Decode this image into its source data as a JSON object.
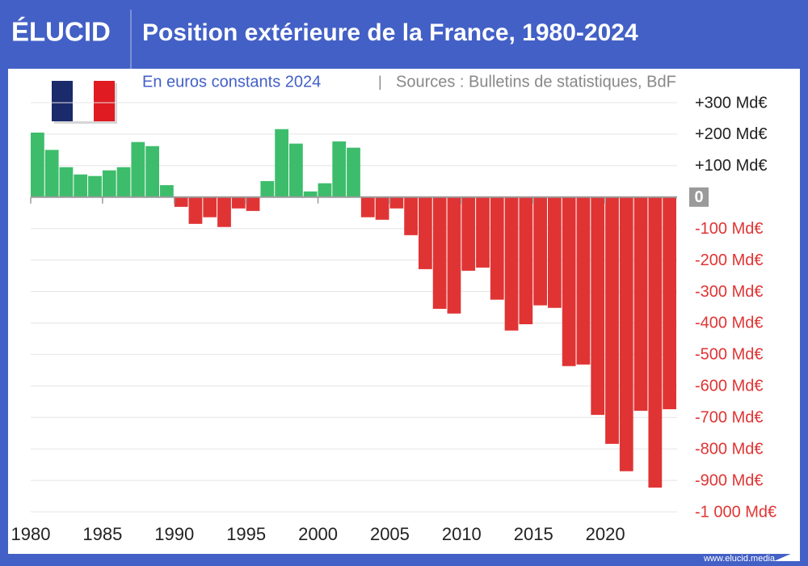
{
  "header": {
    "brand": "ÉLUCID"
  },
  "footer": {
    "url": "www.elucid.media"
  },
  "chart_data": {
    "type": "bar",
    "title": "Position extérieure de la France, 1980-2024",
    "subtitle": "En euros constants 2024",
    "separator": "|",
    "source": "Sources : Bulletins de statistiques, BdF",
    "x": [
      1980,
      1981,
      1982,
      1983,
      1984,
      1985,
      1986,
      1987,
      1988,
      1989,
      1990,
      1991,
      1992,
      1993,
      1994,
      1995,
      1996,
      1997,
      1998,
      1999,
      2000,
      2001,
      2002,
      2003,
      2004,
      2005,
      2006,
      2007,
      2008,
      2009,
      2010,
      2011,
      2012,
      2013,
      2014,
      2015,
      2016,
      2017,
      2018,
      2019,
      2020,
      2021,
      2022,
      2023,
      2024
    ],
    "values": [
      205,
      150,
      95,
      72,
      67,
      85,
      95,
      175,
      162,
      38,
      -31,
      -85,
      -64,
      -95,
      -36,
      -44,
      51,
      216,
      170,
      18,
      44,
      177,
      157,
      -64,
      -72,
      -36,
      -121,
      -229,
      -355,
      -370,
      -234,
      -224,
      -326,
      -424,
      -404,
      -344,
      -352,
      -537,
      -532,
      -692,
      -784,
      -871,
      -679,
      -923,
      -674
    ],
    "positive_color": "#3dbd6b",
    "negative_color": "#e03434",
    "xlim": [
      1980,
      2025
    ],
    "xticks": [
      1980,
      1985,
      1990,
      1995,
      2000,
      2005,
      2010,
      2015,
      2020
    ],
    "ylim": [
      -1000,
      300
    ],
    "yticks": [
      {
        "value": 300,
        "label": "+300 Md€"
      },
      {
        "value": 200,
        "label": "+200 Md€"
      },
      {
        "value": 100,
        "label": "+100 Md€"
      },
      0,
      {
        "value": -100,
        "label": "-100 Md€"
      },
      {
        "value": -200,
        "label": "-200 Md€"
      },
      {
        "value": -300,
        "label": "-300 Md€"
      },
      {
        "value": -400,
        "label": "-400 Md€"
      },
      {
        "value": -500,
        "label": "-500 Md€"
      },
      {
        "value": -600,
        "label": "-600 Md€"
      },
      {
        "value": -700,
        "label": "-700 Md€"
      },
      {
        "value": -800,
        "label": "-800 Md€"
      },
      {
        "value": -900,
        "label": "-900 Md€"
      },
      {
        "value": -1000,
        "label": "-1 000 Md€"
      }
    ],
    "grid": true
  }
}
